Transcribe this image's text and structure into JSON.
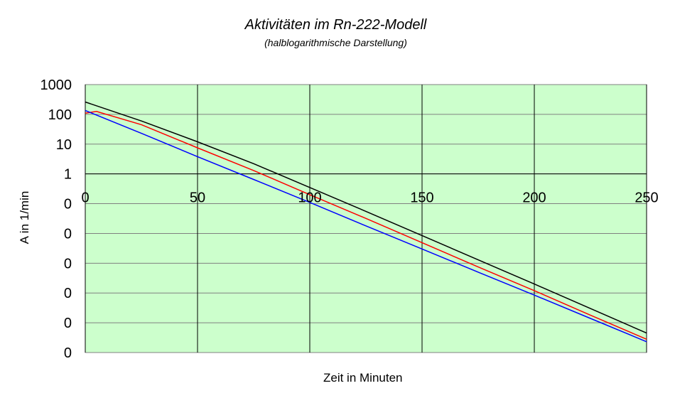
{
  "chart_data": {
    "type": "line",
    "title": "Aktivitäten im Rn-222-Modell",
    "subtitle": "(halblogarithmische Darstellung)",
    "xlabel": "Zeit in Minuten",
    "ylabel": "A in 1/min",
    "x_ticks": [
      "0",
      "50",
      "100",
      "150",
      "200",
      "250"
    ],
    "y_ticks": [
      "1000",
      "100",
      "10",
      "1",
      "0",
      "0",
      "0",
      "0",
      "0",
      "0"
    ],
    "xlim": [
      0,
      250
    ],
    "ylim": [
      1e-06,
      1000
    ],
    "y_scale": "log",
    "grid": true,
    "plot_background": "#ccffcc",
    "x_axis_crosses_at": 1,
    "series": [
      {
        "color": "#000000",
        "x": [
          0,
          25,
          50,
          75,
          100,
          125,
          150,
          175,
          200,
          225,
          250
        ],
        "y": [
          260,
          60,
          12,
          2.2,
          0.35,
          0.055,
          0.0085,
          0.0013,
          0.0002,
          3e-05,
          4.5e-06
        ]
      },
      {
        "color": "#ff0000",
        "x": [
          0,
          5,
          25,
          50,
          75,
          100,
          125,
          150,
          175,
          200,
          225,
          250
        ],
        "y": [
          110,
          125,
          45,
          7.5,
          1.3,
          0.2,
          0.032,
          0.0049,
          0.00075,
          0.00012,
          1.8e-05,
          2.8e-06
        ]
      },
      {
        "color": "#0000ff",
        "x": [
          0,
          25,
          50,
          75,
          100,
          125,
          150,
          175,
          200,
          225,
          250
        ],
        "y": [
          135,
          23,
          3.8,
          0.65,
          0.11,
          0.018,
          0.003,
          0.0005,
          8.5e-05,
          1.4e-05,
          2.3e-06
        ]
      }
    ]
  }
}
